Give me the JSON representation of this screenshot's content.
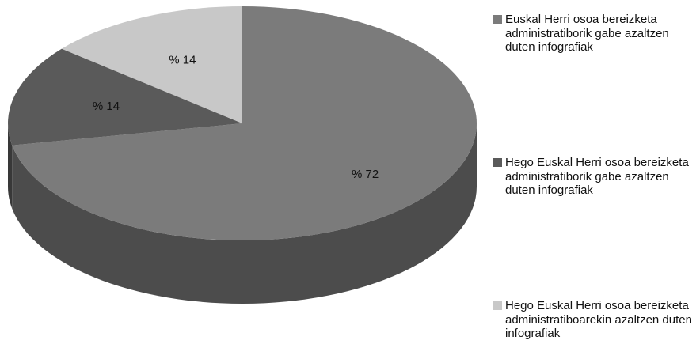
{
  "chart_data": {
    "type": "pie",
    "style": "3d",
    "categories": [
      "Euskal Herri osoa bereizketa administratiborik gabe azaltzen duten infografiak",
      "Hego Euskal Herri osoa bereizketa administratiborik gabe azaltzen duten infografiak",
      "Hego Euskal Herri osoa bereizketa administratiboarekin azaltzen duten infografiak"
    ],
    "values": [
      72,
      14,
      14
    ],
    "data_labels": [
      "% 72",
      "% 14",
      "% 14"
    ],
    "colors": [
      "#7b7b7b",
      "#5a5a5a",
      "#c8c8c8"
    ],
    "legend_position": "right"
  }
}
